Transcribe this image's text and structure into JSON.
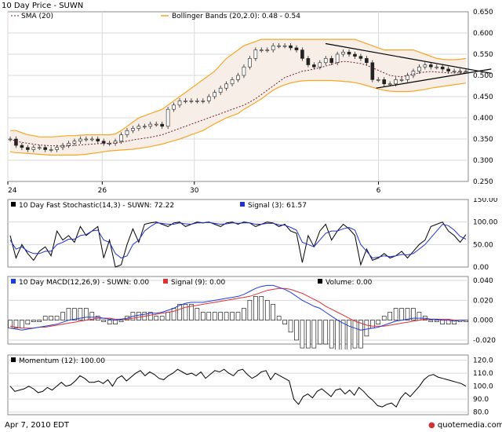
{
  "header": {
    "title": "10 Day Price - SUWN"
  },
  "footer": {
    "date": "Apr 7, 2010 EDT",
    "brand": "quotemedia.com"
  },
  "colors": {
    "grid": "#d9d9d9",
    "frame": "#8a8a8a",
    "band": "#f5a623",
    "bandFill": "#f7efe7",
    "macd": "#1e3ddb",
    "signal": "#e03030",
    "stochSignal": "#2233cc",
    "text": "#000000"
  },
  "chart_data": [
    {
      "type": "candlestick",
      "title": "10 Day Price - SUWN",
      "legend": [
        "SMA (20)",
        "Bollinger Bands (20,2.0): 0.48 - 0.54"
      ],
      "x_ticks": [
        "24",
        "26",
        "30",
        "6"
      ],
      "y_ticks": [
        "0.650",
        "0.600",
        "0.550",
        "0.500",
        "0.450",
        "0.400",
        "0.350",
        "0.300",
        "0.250"
      ],
      "ylim": [
        0.25,
        0.65
      ],
      "close": [
        0.35,
        0.335,
        0.33,
        0.325,
        0.33,
        0.33,
        0.325,
        0.325,
        0.33,
        0.335,
        0.34,
        0.345,
        0.35,
        0.35,
        0.35,
        0.345,
        0.34,
        0.34,
        0.345,
        0.36,
        0.37,
        0.375,
        0.38,
        0.38,
        0.385,
        0.385,
        0.38,
        0.42,
        0.43,
        0.44,
        0.44,
        0.44,
        0.44,
        0.44,
        0.45,
        0.46,
        0.47,
        0.48,
        0.49,
        0.5,
        0.52,
        0.54,
        0.56,
        0.56,
        0.56,
        0.57,
        0.57,
        0.57,
        0.565,
        0.56,
        0.54,
        0.525,
        0.52,
        0.53,
        0.54,
        0.53,
        0.55,
        0.555,
        0.55,
        0.545,
        0.54,
        0.53,
        0.49,
        0.49,
        0.48,
        0.48,
        0.49,
        0.49,
        0.5,
        0.51,
        0.52,
        0.525,
        0.52,
        0.52,
        0.515,
        0.51,
        0.51,
        0.51,
        0.51
      ],
      "sma": [
        0.35,
        0.345,
        0.342,
        0.34,
        0.338,
        0.336,
        0.335,
        0.334,
        0.334,
        0.333,
        0.334,
        0.335,
        0.336,
        0.337,
        0.338,
        0.339,
        0.339,
        0.34,
        0.341,
        0.343,
        0.345,
        0.348,
        0.35,
        0.352,
        0.354,
        0.357,
        0.36,
        0.365,
        0.37,
        0.375,
        0.38,
        0.385,
        0.39,
        0.395,
        0.4,
        0.405,
        0.41,
        0.415,
        0.42,
        0.425,
        0.43,
        0.437,
        0.445,
        0.455,
        0.465,
        0.475,
        0.485,
        0.495,
        0.5,
        0.505,
        0.51,
        0.512,
        0.515,
        0.518,
        0.522,
        0.526,
        0.53,
        0.533,
        0.532,
        0.53,
        0.528,
        0.524,
        0.518,
        0.512,
        0.506,
        0.5,
        0.498,
        0.497,
        0.5,
        0.503,
        0.506,
        0.508,
        0.509,
        0.508,
        0.507,
        0.506,
        0.506,
        0.506,
        0.507
      ],
      "bb_upper": [
        0.37,
        0.37,
        0.365,
        0.36,
        0.358,
        0.355,
        0.355,
        0.355,
        0.356,
        0.357,
        0.358,
        0.358,
        0.359,
        0.36,
        0.36,
        0.36,
        0.36,
        0.36,
        0.362,
        0.37,
        0.38,
        0.39,
        0.4,
        0.405,
        0.41,
        0.415,
        0.42,
        0.43,
        0.44,
        0.45,
        0.46,
        0.47,
        0.48,
        0.49,
        0.5,
        0.51,
        0.525,
        0.54,
        0.55,
        0.56,
        0.57,
        0.575,
        0.58,
        0.585,
        0.585,
        0.585,
        0.585,
        0.585,
        0.585,
        0.585,
        0.585,
        0.585,
        0.585,
        0.585,
        0.585,
        0.585,
        0.585,
        0.585,
        0.585,
        0.585,
        0.58,
        0.575,
        0.57,
        0.565,
        0.56,
        0.56,
        0.56,
        0.56,
        0.56,
        0.56,
        0.555,
        0.55,
        0.545,
        0.54,
        0.538,
        0.537,
        0.537,
        0.538,
        0.54
      ],
      "bb_lower": [
        0.32,
        0.318,
        0.317,
        0.316,
        0.315,
        0.314,
        0.313,
        0.312,
        0.312,
        0.312,
        0.312,
        0.312,
        0.313,
        0.314,
        0.316,
        0.318,
        0.32,
        0.322,
        0.323,
        0.324,
        0.325,
        0.326,
        0.328,
        0.33,
        0.332,
        0.335,
        0.338,
        0.342,
        0.346,
        0.35,
        0.355,
        0.36,
        0.365,
        0.37,
        0.378,
        0.386,
        0.393,
        0.4,
        0.405,
        0.41,
        0.42,
        0.428,
        0.436,
        0.445,
        0.455,
        0.465,
        0.472,
        0.478,
        0.482,
        0.485,
        0.487,
        0.488,
        0.488,
        0.488,
        0.488,
        0.488,
        0.487,
        0.486,
        0.485,
        0.483,
        0.48,
        0.476,
        0.472,
        0.468,
        0.465,
        0.463,
        0.462,
        0.462,
        0.462,
        0.463,
        0.465,
        0.467,
        0.47,
        0.472,
        0.474,
        0.476,
        0.478,
        0.48,
        0.482
      ],
      "trendlines": [
        {
          "from": [
            0.69,
            0.575
          ],
          "to": [
            1.05,
            0.505
          ]
        },
        {
          "from": [
            0.8,
            0.47
          ],
          "to": [
            1.05,
            0.515
          ]
        }
      ]
    },
    {
      "type": "line",
      "title": "10 Day  Fast Stochastic(14,3) - SUWN: 72.22",
      "legend": [
        "10 Day  Fast Stochastic(14,3) - SUWN: 72.22",
        "Signal (3): 61.57"
      ],
      "y_ticks": [
        "150.00",
        "100.00",
        "50.00",
        "0.00"
      ],
      "ylim": [
        0,
        150
      ],
      "series": [
        {
          "name": "Fast Stochastic(14,3)",
          "values": [
            70,
            20,
            50,
            30,
            15,
            35,
            45,
            25,
            80,
            60,
            70,
            55,
            90,
            70,
            80,
            90,
            20,
            60,
            0,
            5,
            50,
            85,
            55,
            95,
            98,
            100,
            95,
            90,
            98,
            100,
            90,
            95,
            100,
            98,
            100,
            95,
            90,
            98,
            100,
            95,
            100,
            98,
            90,
            95,
            100,
            98,
            90,
            95,
            80,
            75,
            10,
            70,
            45,
            80,
            95,
            60,
            80,
            95,
            85,
            70,
            5,
            40,
            15,
            20,
            30,
            20,
            25,
            35,
            20,
            35,
            50,
            60,
            90,
            95,
            100,
            80,
            70,
            55,
            72
          ]
        },
        {
          "name": "Signal (3)",
          "values": [
            60,
            40,
            45,
            35,
            30,
            30,
            35,
            35,
            50,
            55,
            62,
            62,
            70,
            72,
            80,
            82,
            60,
            55,
            30,
            20,
            25,
            50,
            60,
            80,
            90,
            98,
            97,
            95,
            95,
            98,
            96,
            95,
            98,
            98,
            99,
            97,
            95,
            96,
            98,
            97,
            98,
            98,
            95,
            95,
            97,
            97,
            94,
            93,
            88,
            82,
            55,
            50,
            45,
            60,
            75,
            80,
            80,
            85,
            88,
            82,
            50,
            35,
            20,
            22,
            25,
            23,
            25,
            28,
            27,
            30,
            40,
            50,
            65,
            80,
            95,
            92,
            82,
            68,
            62
          ]
        }
      ]
    },
    {
      "type": "line",
      "title": "10 Day MACD(12,26,9) - SUWN: 0.00",
      "legend": [
        "10 Day MACD(12,26,9) - SUWN: 0.00",
        "Signal (9): 0.00",
        "Volume: 0.00"
      ],
      "y_ticks": [
        "0.040",
        "0.020",
        "0.000",
        "-0.020"
      ],
      "ylim": [
        -0.024,
        0.044
      ],
      "series": [
        {
          "name": "MACD",
          "values": [
            -0.008,
            -0.009,
            -0.01,
            -0.009,
            -0.008,
            -0.007,
            -0.006,
            -0.005,
            -0.004,
            -0.002,
            0.0,
            0.001,
            0.002,
            0.003,
            0.003,
            0.003,
            0.002,
            0.001,
            0.0,
            0.001,
            0.002,
            0.004,
            0.005,
            0.006,
            0.007,
            0.007,
            0.008,
            0.01,
            0.012,
            0.015,
            0.017,
            0.018,
            0.018,
            0.018,
            0.019,
            0.02,
            0.021,
            0.022,
            0.023,
            0.024,
            0.026,
            0.029,
            0.032,
            0.034,
            0.035,
            0.035,
            0.033,
            0.031,
            0.028,
            0.024,
            0.02,
            0.017,
            0.014,
            0.012,
            0.008,
            0.004,
            0.0,
            -0.003,
            -0.006,
            -0.008,
            -0.01,
            -0.009,
            -0.008,
            -0.007,
            -0.005,
            -0.003,
            -0.001,
            0.0,
            0.001,
            0.002,
            0.002,
            0.002,
            0.001,
            0.001,
            0.0,
            0.0,
            -0.001,
            0.0,
            0.0
          ]
        },
        {
          "name": "Signal (9)",
          "values": [
            -0.006,
            -0.007,
            -0.008,
            -0.008,
            -0.008,
            -0.007,
            -0.007,
            -0.006,
            -0.005,
            -0.004,
            -0.003,
            -0.002,
            -0.001,
            0.0,
            0.001,
            0.002,
            0.002,
            0.002,
            0.001,
            0.001,
            0.001,
            0.002,
            0.003,
            0.004,
            0.005,
            0.006,
            0.007,
            0.008,
            0.009,
            0.011,
            0.013,
            0.014,
            0.015,
            0.016,
            0.017,
            0.018,
            0.019,
            0.02,
            0.021,
            0.022,
            0.023,
            0.024,
            0.026,
            0.028,
            0.03,
            0.031,
            0.032,
            0.032,
            0.031,
            0.029,
            0.027,
            0.024,
            0.021,
            0.018,
            0.014,
            0.011,
            0.008,
            0.005,
            0.002,
            -0.001,
            -0.003,
            -0.005,
            -0.006,
            -0.006,
            -0.006,
            -0.005,
            -0.004,
            -0.003,
            -0.002,
            -0.001,
            0.0,
            0.001,
            0.001,
            0.001,
            0.001,
            0.001,
            0.0,
            0.0,
            0.0
          ]
        }
      ]
    },
    {
      "type": "line",
      "title": "Momentum (12): 100.00",
      "legend": [
        "Momentum (12): 100.00"
      ],
      "y_ticks": [
        "120.0",
        "110.0",
        "100.0",
        "90.0",
        "80.0"
      ],
      "ylim": [
        78,
        124
      ],
      "series": [
        {
          "name": "Momentum (12)",
          "values": [
            100,
            96,
            97,
            98,
            100,
            98,
            95,
            96,
            99,
            97,
            100,
            103,
            100,
            101,
            104,
            108,
            106,
            103,
            103,
            104,
            102,
            105,
            100,
            106,
            108,
            104,
            107,
            110,
            112,
            108,
            111,
            109,
            106,
            105,
            108,
            110,
            113,
            111,
            109,
            110,
            108,
            111,
            106,
            109,
            112,
            111,
            113,
            110,
            108,
            112,
            113,
            109,
            106,
            108,
            111,
            112,
            105,
            110,
            108,
            106,
            104,
            90,
            86,
            92,
            94,
            91,
            96,
            98,
            95,
            92,
            97,
            98,
            94,
            97,
            93,
            99,
            96,
            92,
            89,
            85,
            84,
            86,
            87,
            84,
            91,
            95,
            92,
            96,
            100,
            105,
            108,
            109,
            107,
            106,
            105,
            104,
            103,
            102,
            100
          ]
        }
      ]
    }
  ]
}
